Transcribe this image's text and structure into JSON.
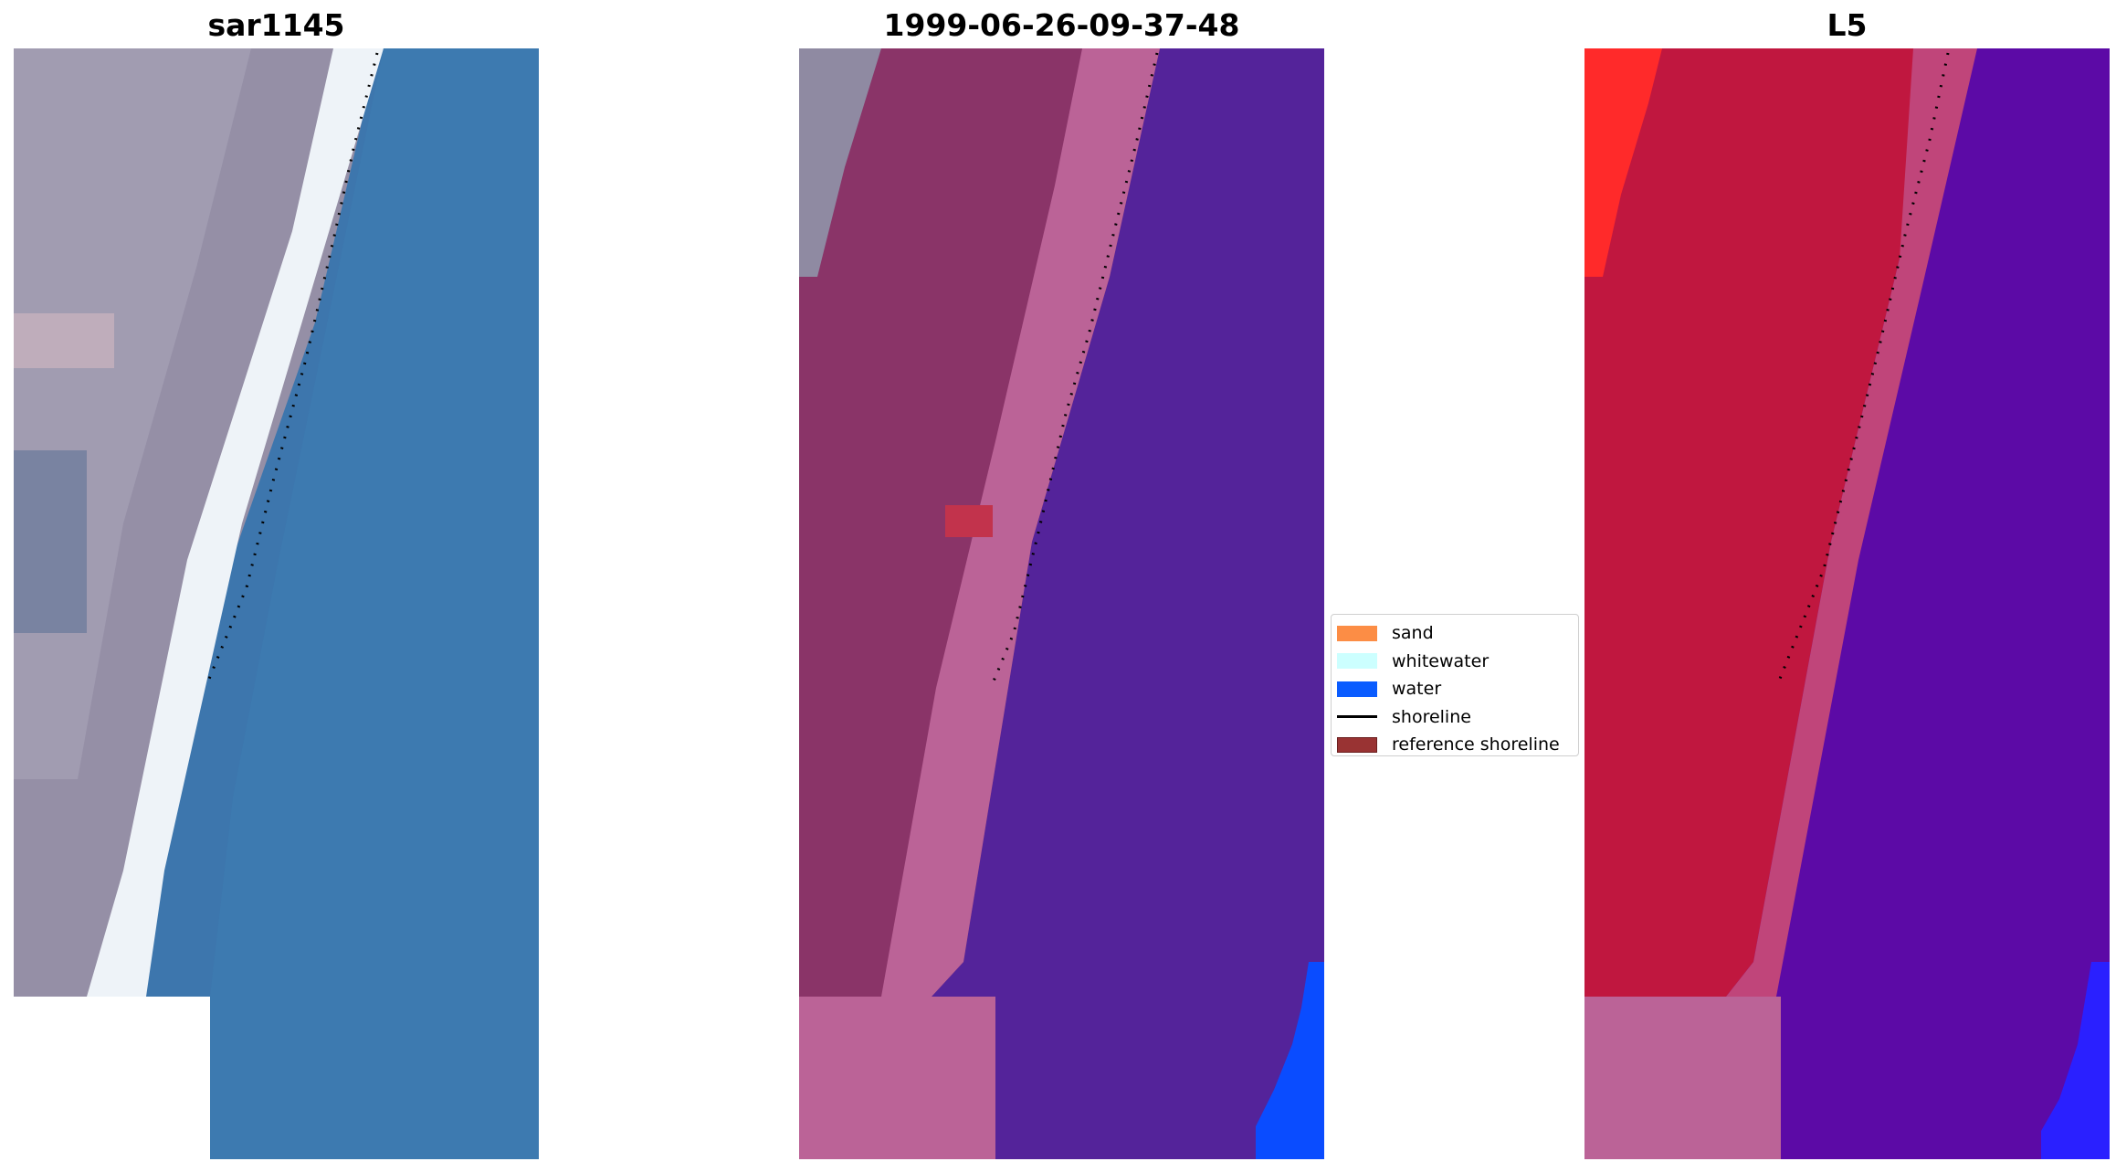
{
  "panels": [
    {
      "title": "sar1145"
    },
    {
      "title": "1999-06-26-09-37-48"
    },
    {
      "title": "L5"
    }
  ],
  "legend": {
    "items": [
      {
        "label": "sand",
        "color": "#fc8d45",
        "kind": "patch"
      },
      {
        "label": "whitewater",
        "color": "#ccffff",
        "kind": "patch"
      },
      {
        "label": "water",
        "color": "#0a5cff",
        "kind": "patch"
      },
      {
        "label": "shoreline",
        "color": "#000000",
        "kind": "line"
      },
      {
        "label": "reference shoreline",
        "color": "#993333",
        "kind": "patch"
      }
    ]
  },
  "colors": {
    "rgb_land": "#8f8ba0",
    "rgb_beach": "#eef4f8",
    "rgb_water": "#3d7ab0",
    "class_land": "#8a3468",
    "class_beach": "#bb6397",
    "class_water": "#54239a",
    "class_water_bright": "#0a4cff",
    "mndwi_land": "#c10f3a",
    "mndwi_water": "#5c0aa6",
    "mndwi_bright_red": "#ff2020",
    "mndwi_bright_blue": "#2a20ff"
  }
}
